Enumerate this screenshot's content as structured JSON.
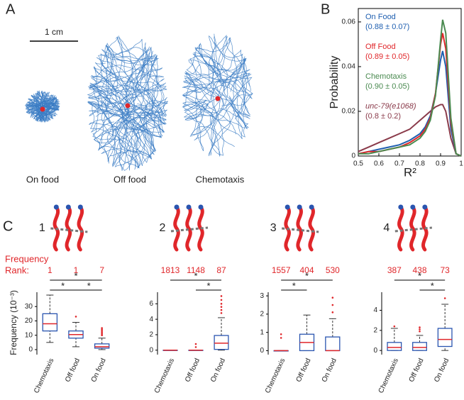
{
  "panel_labels": [
    "A",
    "B",
    "C"
  ],
  "panel_a": {
    "scale_bar": "1 cm",
    "conditions": [
      "On food",
      "Off food",
      "Chemotaxis"
    ]
  },
  "panel_c": {
    "rank_label": [
      "Frequency",
      "Rank:"
    ]
  },
  "chart_data": [
    {
      "type": "line",
      "xlabel": "R²",
      "ylabel": "Probability",
      "x": [
        0.5,
        0.55,
        0.6,
        0.65,
        0.7,
        0.75,
        0.8,
        0.825,
        0.85,
        0.875,
        0.9,
        0.91,
        0.925,
        0.95,
        0.975,
        1.0
      ],
      "xlim": [
        0.5,
        1
      ],
      "ylim": [
        0,
        0.066
      ],
      "xticks": [
        0.5,
        0.6,
        0.7,
        0.8,
        0.9,
        1
      ],
      "yticks": [
        0,
        0.02,
        0.04,
        0.06
      ],
      "series": [
        {
          "name": "On Food",
          "annotation": "(0.88 ± 0.07)",
          "color": "#1f5fb0",
          "values": [
            0.001,
            0.002,
            0.003,
            0.004,
            0.005,
            0.007,
            0.01,
            0.013,
            0.018,
            0.028,
            0.043,
            0.047,
            0.04,
            0.012,
            0.001,
            0
          ]
        },
        {
          "name": "Off Food",
          "annotation": "(0.89 ± 0.05)",
          "color": "#e0262a",
          "values": [
            0.001,
            0.002,
            0.002,
            0.003,
            0.004,
            0.006,
            0.009,
            0.012,
            0.017,
            0.028,
            0.05,
            0.055,
            0.048,
            0.015,
            0.001,
            0
          ]
        },
        {
          "name": "Chemotaxis",
          "annotation": "(0.90 ± 0.05)",
          "color": "#4a8a50",
          "values": [
            0.001,
            0.001,
            0.002,
            0.003,
            0.004,
            0.005,
            0.008,
            0.011,
            0.016,
            0.027,
            0.052,
            0.061,
            0.055,
            0.017,
            0.001,
            0
          ]
        },
        {
          "name": "unc-79(e1068)",
          "annotation": "(0.8 ± 0.2)",
          "color": "#8a3a4a",
          "values": [
            0.002,
            0.004,
            0.006,
            0.008,
            0.01,
            0.012,
            0.016,
            0.018,
            0.02,
            0.022,
            0.023,
            0.023,
            0.02,
            0.008,
            0.001,
            0
          ]
        }
      ]
    },
    {
      "type": "box",
      "title": "1",
      "ylabel": "Frequency  (10⁻³)",
      "ranks": [
        1,
        1,
        7
      ],
      "categories": [
        "Chemotaxis",
        "Off food",
        "On food"
      ],
      "ylim": [
        -2,
        40
      ],
      "yticks": [
        0,
        10,
        20,
        30
      ],
      "boxes": [
        {
          "whisker_low": 5,
          "q1": 13,
          "median": 18,
          "q3": 25,
          "whisker_high": 38,
          "outliers": []
        },
        {
          "whisker_low": 2,
          "q1": 8,
          "median": 10.5,
          "q3": 13,
          "whisker_high": 19,
          "outliers": [
            23
          ]
        },
        {
          "whisker_low": 0,
          "q1": 1,
          "median": 2,
          "q3": 4,
          "whisker_high": 8,
          "outliers": [
            10,
            11,
            12,
            13,
            14,
            15
          ]
        }
      ],
      "significance": [
        {
          "pair": [
            0,
            2
          ],
          "label": "*"
        },
        {
          "pair": [
            0,
            1
          ],
          "label": "*"
        },
        {
          "pair": [
            1,
            2
          ],
          "label": "*"
        }
      ]
    },
    {
      "type": "box",
      "title": "2",
      "ranks": [
        1813,
        1148,
        87
      ],
      "categories": [
        "Chemotaxis",
        "Off food",
        "On food"
      ],
      "ylim": [
        -0.3,
        7.5
      ],
      "yticks": [
        0,
        2,
        4,
        6
      ],
      "boxes": [
        {
          "whisker_low": 0,
          "q1": 0,
          "median": 0,
          "q3": 0,
          "whisker_high": 0,
          "outliers": []
        },
        {
          "whisker_low": 0,
          "q1": 0,
          "median": 0,
          "q3": 0,
          "whisker_high": 0,
          "outliers": [
            0.4,
            0.8
          ]
        },
        {
          "whisker_low": 0,
          "q1": 0.1,
          "median": 0.9,
          "q3": 1.9,
          "whisker_high": 4.2,
          "outliers": [
            4.8,
            5.2,
            5.6,
            6,
            6.5,
            7
          ]
        }
      ],
      "significance": [
        {
          "pair": [
            0,
            2
          ],
          "label": "*"
        },
        {
          "pair": [
            1,
            2
          ],
          "label": "*"
        }
      ]
    },
    {
      "type": "box",
      "title": "3",
      "ranks": [
        1557,
        404,
        530
      ],
      "categories": [
        "Chemotaxis",
        "Off food",
        "On food"
      ],
      "ylim": [
        -0.1,
        3.2
      ],
      "yticks": [
        0,
        1,
        2,
        3
      ],
      "boxes": [
        {
          "whisker_low": 0,
          "q1": 0,
          "median": 0,
          "q3": 0,
          "whisker_high": 0,
          "outliers": [
            0.7,
            0.9
          ]
        },
        {
          "whisker_low": 0,
          "q1": 0,
          "median": 0.45,
          "q3": 0.9,
          "whisker_high": 1.95,
          "outliers": []
        },
        {
          "whisker_low": 0,
          "q1": 0,
          "median": 0,
          "q3": 0.75,
          "whisker_high": 1.75,
          "outliers": [
            2.1,
            2.5,
            2.9
          ]
        }
      ],
      "significance": [
        {
          "pair": [
            0,
            2
          ],
          "label": "*"
        },
        {
          "pair": [
            0,
            1
          ],
          "label": "*"
        }
      ]
    },
    {
      "type": "box",
      "title": "4",
      "ranks": [
        387,
        438,
        73
      ],
      "categories": [
        "Chemotaxis",
        "Off food",
        "On food"
      ],
      "ylim": [
        -0.2,
        5.8
      ],
      "yticks": [
        0,
        2,
        4
      ],
      "boxes": [
        {
          "whisker_low": 0,
          "q1": 0,
          "median": 0.3,
          "q3": 0.8,
          "whisker_high": 2.2,
          "outliers": [
            2.4
          ]
        },
        {
          "whisker_low": 0,
          "q1": 0,
          "median": 0.3,
          "q3": 0.8,
          "whisker_high": 1.5,
          "outliers": [
            1.9,
            2.1,
            2.3
          ]
        },
        {
          "whisker_low": 0,
          "q1": 0.4,
          "median": 1.1,
          "q3": 2.2,
          "whisker_high": 4.6,
          "outliers": [
            5.2
          ]
        }
      ],
      "significance": [
        {
          "pair": [
            0,
            2
          ],
          "label": "*"
        },
        {
          "pair": [
            1,
            2
          ],
          "label": "*"
        }
      ]
    }
  ]
}
